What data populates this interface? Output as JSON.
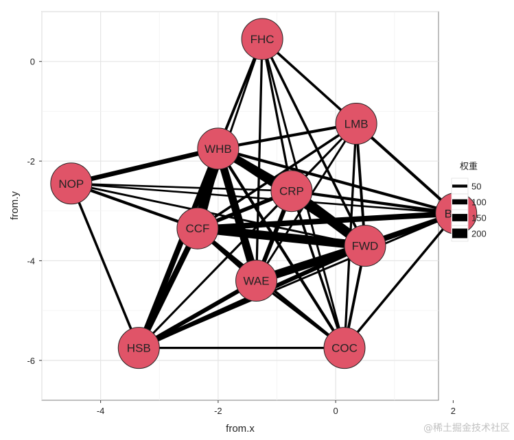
{
  "chart_data": {
    "type": "network",
    "title": "",
    "xlabel": "from.x",
    "ylabel": "from.y",
    "xlim": [
      -5.0,
      1.75
    ],
    "ylim": [
      -6.8,
      1.0
    ],
    "x_ticks": [
      -4,
      -2,
      0,
      2
    ],
    "x_tick_labels": [
      "-4",
      "-2",
      "0",
      "2"
    ],
    "y_ticks": [
      0,
      -2,
      -4,
      -6
    ],
    "y_tick_labels": [
      "0",
      "-2",
      "-4",
      "-6"
    ],
    "grid": true,
    "node_color": "#e05468",
    "edge_color": "#000000",
    "legend": {
      "title": "权重",
      "placement": "right",
      "entries": [
        {
          "label": "50",
          "value": 50
        },
        {
          "label": "100",
          "value": 100
        },
        {
          "label": "150",
          "value": 150
        },
        {
          "label": "200",
          "value": 200
        }
      ]
    },
    "nodes": [
      {
        "name": "FHC",
        "x": -1.25,
        "y": 0.45
      },
      {
        "name": "LMB",
        "x": 0.35,
        "y": -1.25
      },
      {
        "name": "WHB",
        "x": -2.0,
        "y": -1.75
      },
      {
        "name": "NOP",
        "x": -4.5,
        "y": -2.45
      },
      {
        "name": "CRP",
        "x": -0.75,
        "y": -2.6
      },
      {
        "name": "BLG",
        "x": 2.05,
        "y": -3.05
      },
      {
        "name": "CCF",
        "x": -2.35,
        "y": -3.35
      },
      {
        "name": "FWD",
        "x": 0.5,
        "y": -3.7
      },
      {
        "name": "WAE",
        "x": -1.35,
        "y": -4.4
      },
      {
        "name": "HSB",
        "x": -3.35,
        "y": -5.75
      },
      {
        "name": "COC",
        "x": 0.15,
        "y": -5.75
      }
    ],
    "edges": [
      {
        "from": "FHC",
        "to": "LMB",
        "weight": 40
      },
      {
        "from": "FHC",
        "to": "WHB",
        "weight": 45
      },
      {
        "from": "FHC",
        "to": "CRP",
        "weight": 35
      },
      {
        "from": "FHC",
        "to": "BLG",
        "weight": 35
      },
      {
        "from": "FHC",
        "to": "CCF",
        "weight": 30
      },
      {
        "from": "FHC",
        "to": "FWD",
        "weight": 40
      },
      {
        "from": "FHC",
        "to": "WAE",
        "weight": 35
      },
      {
        "from": "FHC",
        "to": "COC",
        "weight": 30
      },
      {
        "from": "LMB",
        "to": "WHB",
        "weight": 50
      },
      {
        "from": "LMB",
        "to": "CRP",
        "weight": 30
      },
      {
        "from": "LMB",
        "to": "CCF",
        "weight": 35
      },
      {
        "from": "LMB",
        "to": "FWD",
        "weight": 45
      },
      {
        "from": "LMB",
        "to": "BLG",
        "weight": 50
      },
      {
        "from": "LMB",
        "to": "WAE",
        "weight": 30
      },
      {
        "from": "LMB",
        "to": "COC",
        "weight": 35
      },
      {
        "from": "LMB",
        "to": "HSB",
        "weight": 25
      },
      {
        "from": "WHB",
        "to": "NOP",
        "weight": 90
      },
      {
        "from": "WHB",
        "to": "CRP",
        "weight": 170
      },
      {
        "from": "WHB",
        "to": "CCF",
        "weight": 200
      },
      {
        "from": "WHB",
        "to": "WAE",
        "weight": 160
      },
      {
        "from": "WHB",
        "to": "FWD",
        "weight": 90
      },
      {
        "from": "WHB",
        "to": "BLG",
        "weight": 50
      },
      {
        "from": "WHB",
        "to": "HSB",
        "weight": 110
      },
      {
        "from": "WHB",
        "to": "COC",
        "weight": 50
      },
      {
        "from": "NOP",
        "to": "CCF",
        "weight": 50
      },
      {
        "from": "NOP",
        "to": "FWD",
        "weight": 30
      },
      {
        "from": "NOP",
        "to": "CRP",
        "weight": 25
      },
      {
        "from": "NOP",
        "to": "HSB",
        "weight": 40
      },
      {
        "from": "NOP",
        "to": "BLG",
        "weight": 25
      },
      {
        "from": "CRP",
        "to": "FWD",
        "weight": 200
      },
      {
        "from": "CRP",
        "to": "CCF",
        "weight": 70
      },
      {
        "from": "CRP",
        "to": "WAE",
        "weight": 80
      },
      {
        "from": "CRP",
        "to": "BLG",
        "weight": 50
      },
      {
        "from": "CRP",
        "to": "HSB",
        "weight": 30
      },
      {
        "from": "CRP",
        "to": "COC",
        "weight": 40
      },
      {
        "from": "CCF",
        "to": "FWD",
        "weight": 180
      },
      {
        "from": "CCF",
        "to": "BLG",
        "weight": 110
      },
      {
        "from": "CCF",
        "to": "WAE",
        "weight": 80
      },
      {
        "from": "CCF",
        "to": "HSB",
        "weight": 110
      },
      {
        "from": "CCF",
        "to": "COC",
        "weight": 45
      },
      {
        "from": "FWD",
        "to": "BLG",
        "weight": 90
      },
      {
        "from": "FWD",
        "to": "WAE",
        "weight": 170
      },
      {
        "from": "FWD",
        "to": "HSB",
        "weight": 80
      },
      {
        "from": "FWD",
        "to": "COC",
        "weight": 45
      },
      {
        "from": "WAE",
        "to": "BLG",
        "weight": 80
      },
      {
        "from": "WAE",
        "to": "HSB",
        "weight": 80
      },
      {
        "from": "WAE",
        "to": "COC",
        "weight": 40
      },
      {
        "from": "BLG",
        "to": "HSB",
        "weight": 30
      },
      {
        "from": "BLG",
        "to": "COC",
        "weight": 40
      },
      {
        "from": "HSB",
        "to": "COC",
        "weight": 35
      },
      {
        "from": "WHB",
        "to": "LMB",
        "weight": 30
      },
      {
        "from": "CCF",
        "to": "LMB",
        "weight": 40
      }
    ]
  },
  "watermark": "@稀土掘金技术社区"
}
